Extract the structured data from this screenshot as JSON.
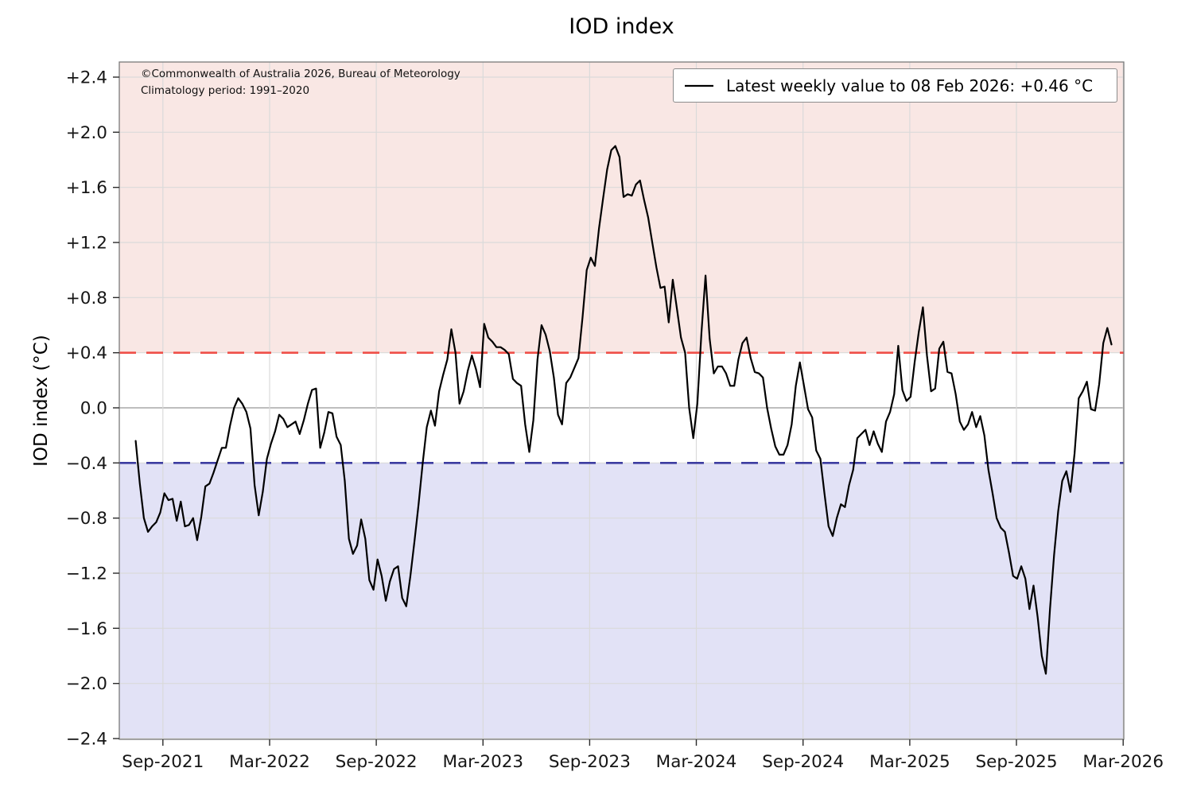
{
  "title": "IOD index",
  "y_axis_label": "IOD index (°C)",
  "annotation": {
    "line1": "©Commonwealth of Australia 2026, Bureau of Meteorology",
    "line2": "Climatology period: 1991–2020"
  },
  "legend": {
    "label": "Latest weekly value to 08 Feb 2026: +0.46 °C"
  },
  "chart_data": {
    "type": "line",
    "title": "IOD index",
    "xlabel": "",
    "ylabel": "IOD index (°C)",
    "ylim": [
      -2.41,
      2.51
    ],
    "grid": true,
    "legend_position": "upper right",
    "line_color": "#000000",
    "y_ticks": {
      "values": [
        2.4,
        2.0,
        1.6,
        1.2,
        0.8,
        0.4,
        0.0,
        -0.4,
        -0.8,
        -1.2,
        -1.6,
        -2.0,
        -2.4
      ],
      "labels": [
        "+2.4",
        "+2.0",
        "+1.6",
        "+1.2",
        "+0.8",
        "+0.4",
        "0.0",
        "−0.4",
        "−0.8",
        "−1.2",
        "−1.6",
        "−2.0",
        "−2.4"
      ]
    },
    "x_ticks": {
      "labels": [
        "Sep-2021",
        "Mar-2022",
        "Sep-2022",
        "Mar-2023",
        "Sep-2023",
        "Mar-2024",
        "Sep-2024",
        "Mar-2025",
        "Sep-2025",
        "Mar-2026"
      ]
    },
    "thresholds": {
      "positive_value": 0.4,
      "negative_value": -0.4,
      "positive_line_color": "#ef4f48",
      "negative_line_color": "#3c3ca0",
      "positive_band_color": "#f9e7e4",
      "negative_band_color": "#e2e2f6"
    },
    "latest": {
      "date": "08 Feb 2026",
      "value": "+0.46 °C"
    },
    "series": [
      {
        "name": "Latest weekly value to 08 Feb 2026: +0.46 °C",
        "cadence": "weekly",
        "end_label": "08 Feb 2026",
        "values": [
          -0.24,
          -0.55,
          -0.8,
          -0.9,
          -0.86,
          -0.83,
          -0.76,
          -0.62,
          -0.67,
          -0.66,
          -0.82,
          -0.68,
          -0.86,
          -0.85,
          -0.8,
          -0.96,
          -0.79,
          -0.57,
          -0.55,
          -0.47,
          -0.38,
          -0.29,
          -0.29,
          -0.13,
          0.0,
          0.07,
          0.03,
          -0.03,
          -0.15,
          -0.56,
          -0.78,
          -0.61,
          -0.37,
          -0.26,
          -0.17,
          -0.05,
          -0.08,
          -0.14,
          -0.12,
          -0.1,
          -0.19,
          -0.09,
          0.03,
          0.13,
          0.14,
          -0.29,
          -0.18,
          -0.03,
          -0.04,
          -0.21,
          -0.27,
          -0.53,
          -0.95,
          -1.06,
          -1.0,
          -0.81,
          -0.95,
          -1.25,
          -1.32,
          -1.1,
          -1.22,
          -1.4,
          -1.26,
          -1.17,
          -1.15,
          -1.38,
          -1.44,
          -1.22,
          -0.97,
          -0.7,
          -0.4,
          -0.14,
          -0.02,
          -0.13,
          0.12,
          0.24,
          0.35,
          0.57,
          0.4,
          0.03,
          0.12,
          0.27,
          0.38,
          0.28,
          0.15,
          0.61,
          0.51,
          0.48,
          0.44,
          0.44,
          0.42,
          0.39,
          0.21,
          0.18,
          0.16,
          -0.12,
          -0.32,
          -0.09,
          0.35,
          0.6,
          0.53,
          0.41,
          0.22,
          -0.05,
          -0.12,
          0.18,
          0.22,
          0.29,
          0.36,
          0.66,
          1.0,
          1.09,
          1.03,
          1.3,
          1.52,
          1.73,
          1.87,
          1.9,
          1.82,
          1.53,
          1.55,
          1.54,
          1.62,
          1.65,
          1.51,
          1.38,
          1.2,
          1.02,
          0.87,
          0.88,
          0.62,
          0.93,
          0.72,
          0.51,
          0.4,
          0.0,
          -0.22,
          0.03,
          0.55,
          0.96,
          0.5,
          0.25,
          0.3,
          0.3,
          0.25,
          0.16,
          0.16,
          0.35,
          0.47,
          0.51,
          0.36,
          0.26,
          0.25,
          0.22,
          0.0,
          -0.15,
          -0.28,
          -0.34,
          -0.34,
          -0.27,
          -0.12,
          0.16,
          0.33,
          0.16,
          -0.01,
          -0.07,
          -0.31,
          -0.37,
          -0.62,
          -0.86,
          -0.93,
          -0.8,
          -0.7,
          -0.72,
          -0.56,
          -0.45,
          -0.22,
          -0.19,
          -0.16,
          -0.27,
          -0.17,
          -0.26,
          -0.32,
          -0.1,
          -0.03,
          0.1,
          0.45,
          0.13,
          0.05,
          0.08,
          0.33,
          0.55,
          0.73,
          0.38,
          0.12,
          0.14,
          0.43,
          0.48,
          0.26,
          0.25,
          0.1,
          -0.1,
          -0.16,
          -0.12,
          -0.03,
          -0.14,
          -0.06,
          -0.2,
          -0.45,
          -0.62,
          -0.8,
          -0.87,
          -0.9,
          -1.05,
          -1.22,
          -1.24,
          -1.15,
          -1.24,
          -1.46,
          -1.29,
          -1.52,
          -1.8,
          -1.93,
          -1.46,
          -1.07,
          -0.75,
          -0.53,
          -0.46,
          -0.61,
          -0.33,
          0.07,
          0.12,
          0.19,
          -0.01,
          -0.02,
          0.17,
          0.47,
          0.58,
          0.46
        ]
      }
    ]
  }
}
